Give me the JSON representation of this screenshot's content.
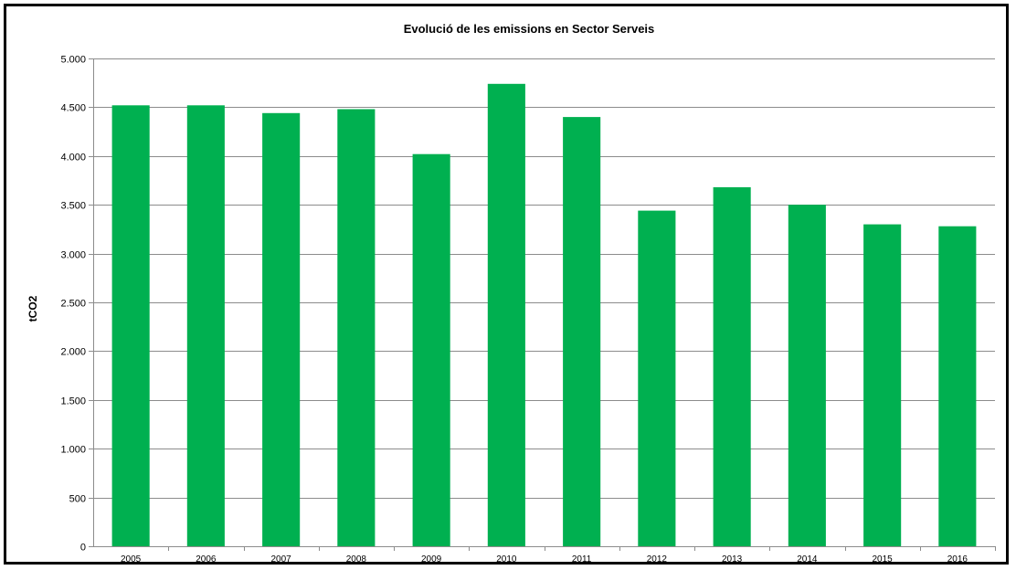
{
  "chart_data": {
    "type": "bar",
    "title": "Evolució de les emissions  en Sector Serveis",
    "xlabel": "",
    "ylabel": "tCO2",
    "categories": [
      "2005",
      "2006",
      "2007",
      "2008",
      "2009",
      "2010",
      "2011",
      "2012",
      "2013",
      "2014",
      "2015",
      "2016"
    ],
    "series": [
      {
        "values": [
          4520,
          4520,
          4440,
          4480,
          4020,
          4740,
          4400,
          3440,
          3680,
          3500,
          3300,
          3280
        ]
      }
    ],
    "ylim": [
      0,
      5000
    ],
    "yticks": [
      0,
      500,
      1000,
      1500,
      2000,
      2500,
      3000,
      3500,
      4000,
      4500,
      5000
    ],
    "ytick_labels": [
      "0",
      "500",
      "1.000",
      "1.500",
      "2.000",
      "2.500",
      "3.000",
      "3.500",
      "4.000",
      "4.500",
      "5.000"
    ],
    "grid": true,
    "legend": "none",
    "colors": {
      "bar": "#00b050",
      "grid": "#8c8c8c",
      "axis": "#8c8c8c"
    }
  }
}
